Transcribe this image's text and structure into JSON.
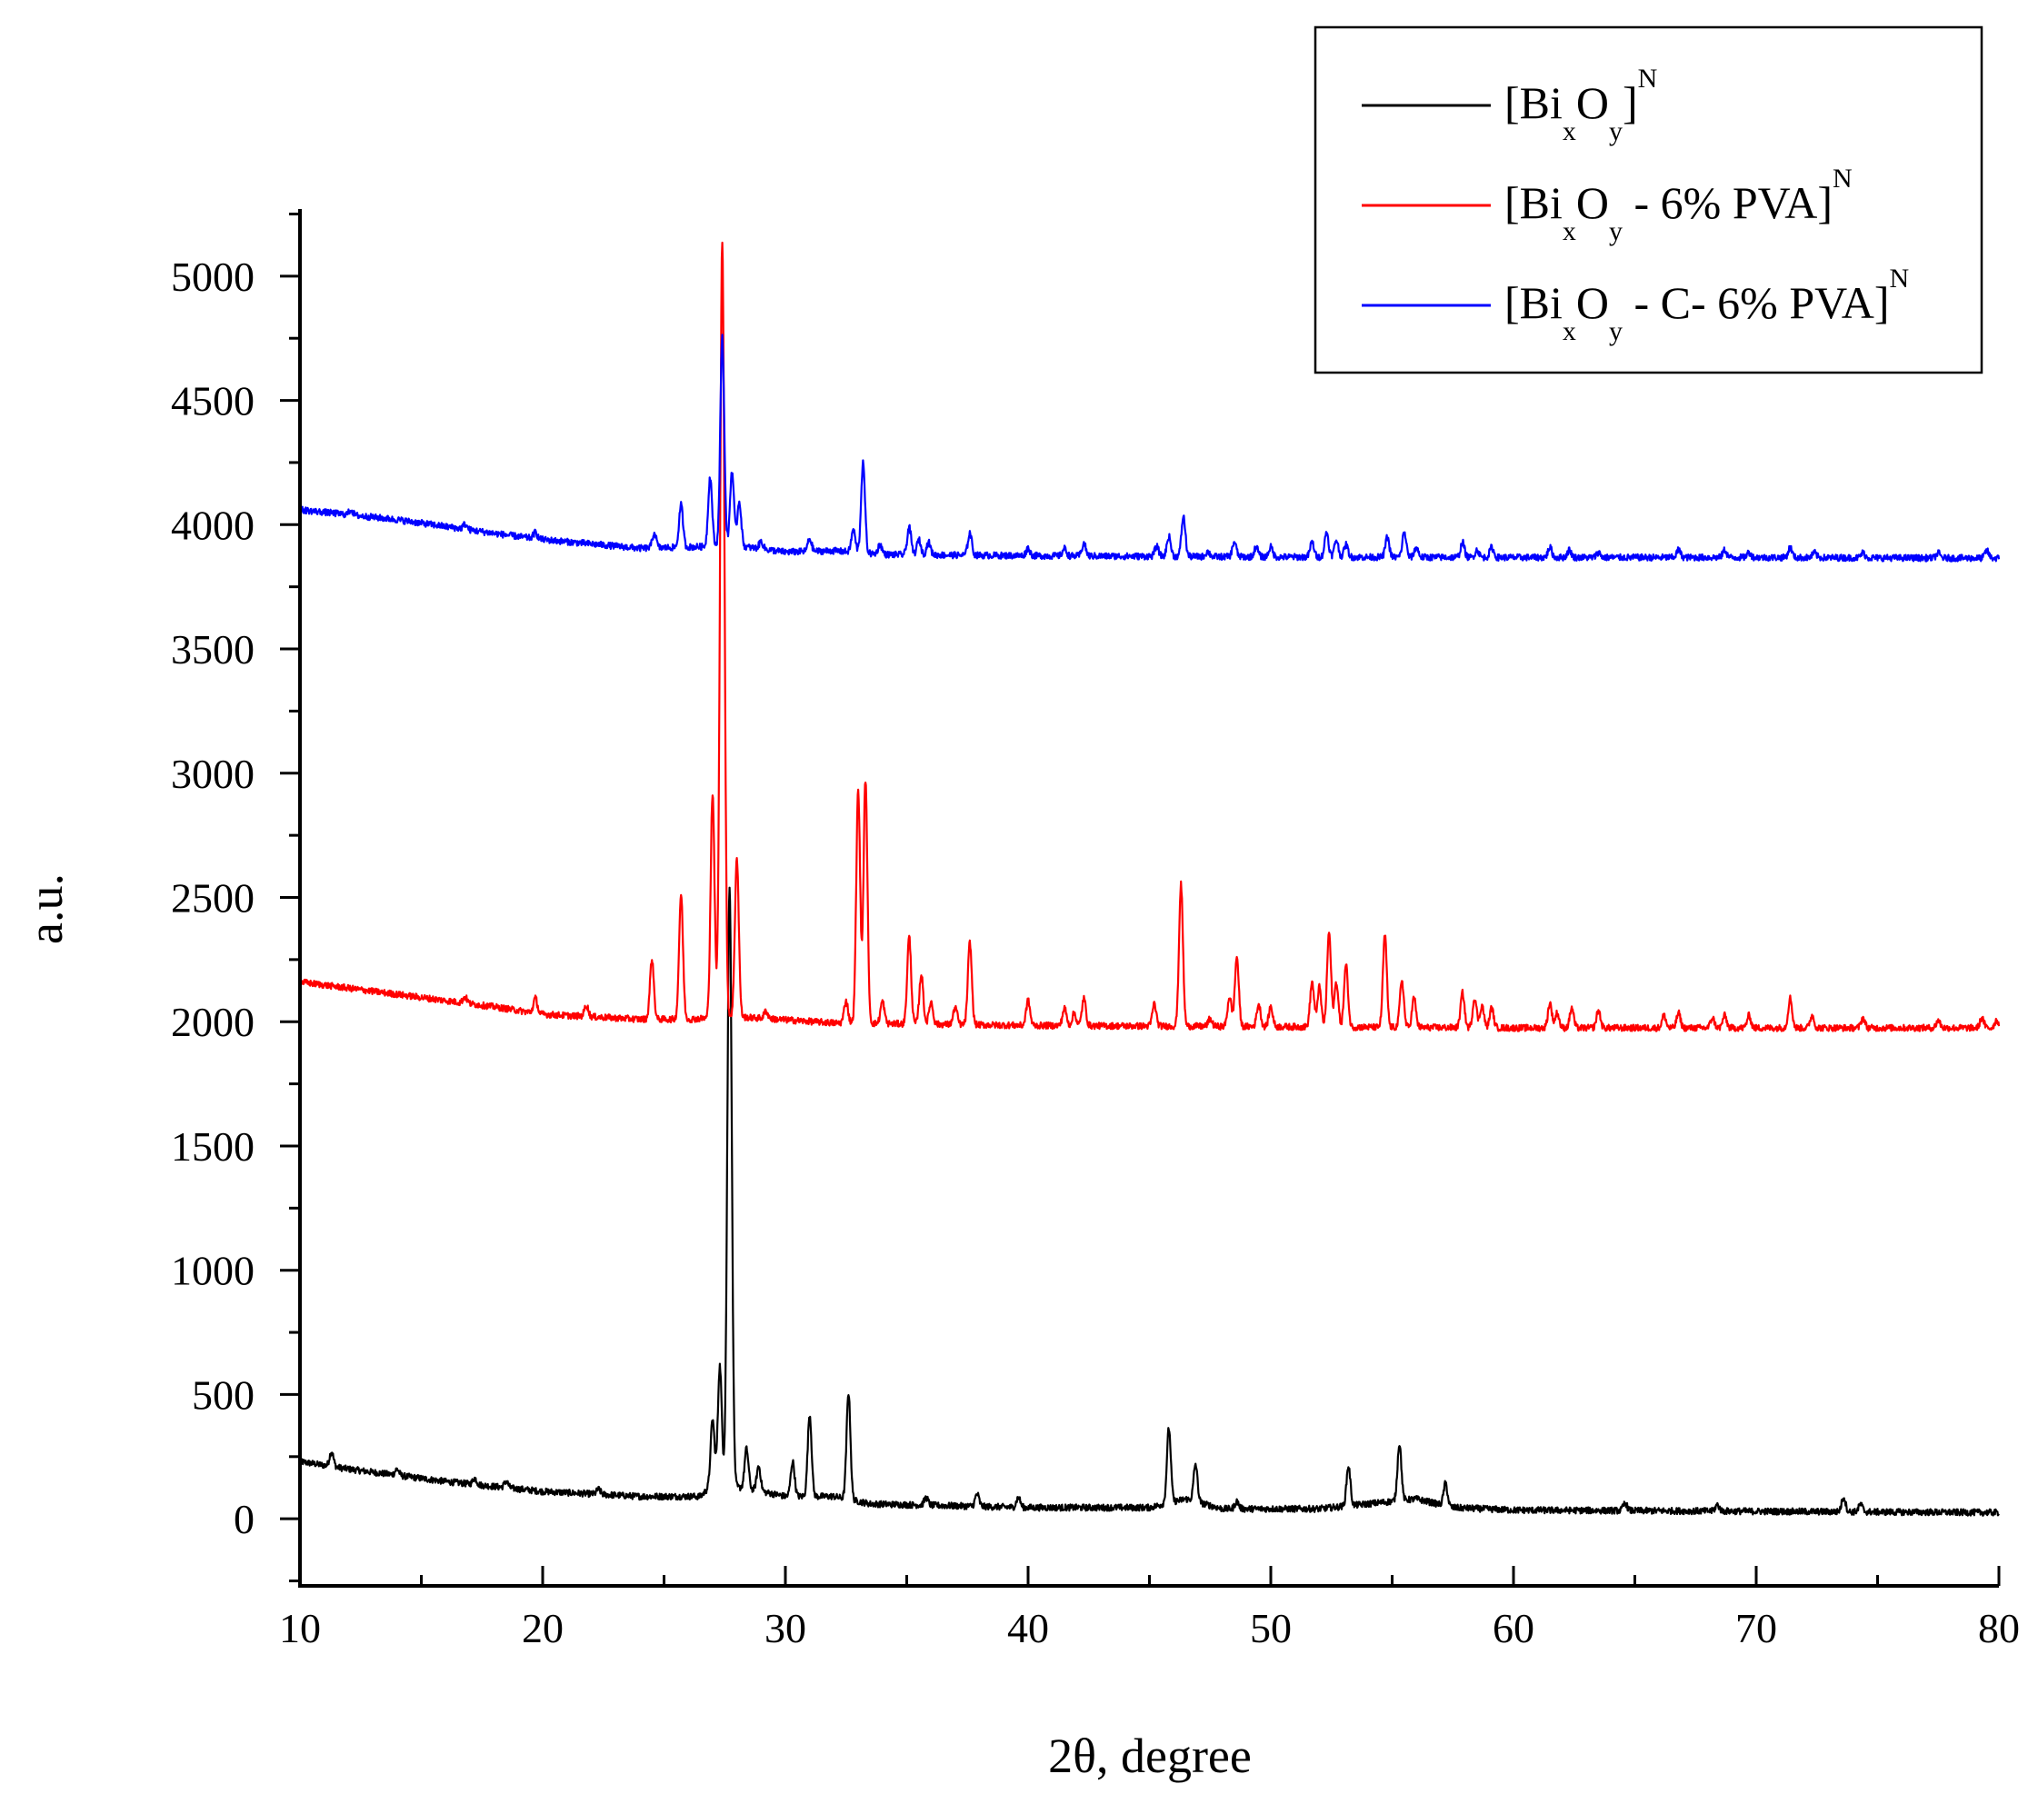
{
  "chart_data": {
    "type": "line",
    "title": "",
    "xlabel": "2θ, degree",
    "ylabel": "a.u.",
    "xlim": [
      10,
      80
    ],
    "ylim": [
      -270,
      5270
    ],
    "xticks": [
      "10",
      "20",
      "30",
      "40",
      "50",
      "60",
      "70",
      "80"
    ],
    "yticks": [
      "0",
      "500",
      "1000",
      "1500",
      "2000",
      "2500",
      "3000",
      "3500",
      "4000",
      "4500",
      "5000"
    ],
    "grid": false,
    "legend_position": "top-right",
    "series": [
      {
        "name": "[BixOy]N",
        "name_parts": {
          "base1": "[Bi",
          "sub1": "x",
          "base2": "O",
          "sub2": "y",
          "base3": "]",
          "sup": "N"
        },
        "color": "#000000",
        "baseline": [
          [
            10,
            230
          ],
          [
            12,
            200
          ],
          [
            16,
            150
          ],
          [
            20,
            110
          ],
          [
            24,
            90
          ],
          [
            26.5,
            90
          ],
          [
            27,
            140
          ],
          [
            28.5,
            120
          ],
          [
            30,
            90
          ],
          [
            32,
            90
          ],
          [
            33.5,
            60
          ],
          [
            40,
            45
          ],
          [
            45,
            45
          ],
          [
            46.5,
            80
          ],
          [
            48,
            40
          ],
          [
            52,
            40
          ],
          [
            56,
            80
          ],
          [
            57.5,
            45
          ],
          [
            60,
            35
          ],
          [
            70,
            30
          ],
          [
            80,
            25
          ]
        ],
        "peaks": [
          [
            11.3,
            60
          ],
          [
            14,
            25
          ],
          [
            17.2,
            25
          ],
          [
            18.5,
            25
          ],
          [
            22.3,
            20
          ],
          [
            27.0,
            260
          ],
          [
            27.3,
            480
          ],
          [
            27.7,
            2420
          ],
          [
            28.4,
            160
          ],
          [
            28.9,
            100
          ],
          [
            30.3,
            140
          ],
          [
            31.0,
            330
          ],
          [
            32.6,
            430
          ],
          [
            35.8,
            30
          ],
          [
            37.9,
            50
          ],
          [
            39.6,
            40
          ],
          [
            45.8,
            300
          ],
          [
            46.9,
            150
          ],
          [
            48.6,
            30
          ],
          [
            53.2,
            160
          ],
          [
            55.3,
            230
          ],
          [
            57.2,
            90
          ],
          [
            64.6,
            30
          ],
          [
            68.4,
            25
          ],
          [
            73.6,
            60
          ],
          [
            74.3,
            30
          ]
        ]
      },
      {
        "name": "[BixOy - 6% PVA]N",
        "name_parts": {
          "base1": "[Bi",
          "sub1": "x",
          "base2": "O",
          "sub2": "y",
          "base3": " - 6% PVA]",
          "sup": "N"
        },
        "color": "#ff0000",
        "baseline": [
          [
            10,
            2160
          ],
          [
            14,
            2110
          ],
          [
            18,
            2060
          ],
          [
            20,
            2030
          ],
          [
            24,
            2010
          ],
          [
            26,
            2010
          ],
          [
            28,
            2020
          ],
          [
            32,
            1995
          ],
          [
            40,
            1985
          ],
          [
            50,
            1980
          ],
          [
            60,
            1975
          ],
          [
            70,
            1975
          ],
          [
            80,
            1975
          ]
        ],
        "peaks": [
          [
            16.8,
            25
          ],
          [
            19.7,
            60
          ],
          [
            21.8,
            45
          ],
          [
            24.5,
            240
          ],
          [
            25.7,
            500
          ],
          [
            27.0,
            900
          ],
          [
            27.4,
            3130
          ],
          [
            28.0,
            640
          ],
          [
            29.2,
            30
          ],
          [
            32.5,
            90
          ],
          [
            33.0,
            940
          ],
          [
            33.3,
            980
          ],
          [
            34.0,
            90
          ],
          [
            35.1,
            350
          ],
          [
            35.6,
            200
          ],
          [
            36.0,
            90
          ],
          [
            37.0,
            70
          ],
          [
            37.6,
            330
          ],
          [
            40.0,
            100
          ],
          [
            41.5,
            70
          ],
          [
            41.9,
            50
          ],
          [
            42.3,
            110
          ],
          [
            45.2,
            90
          ],
          [
            46.3,
            570
          ],
          [
            47.5,
            30
          ],
          [
            48.3,
            120
          ],
          [
            48.6,
            280
          ],
          [
            49.5,
            90
          ],
          [
            50.0,
            80
          ],
          [
            51.7,
            180
          ],
          [
            52.0,
            160
          ],
          [
            52.4,
            380
          ],
          [
            52.7,
            180
          ],
          [
            53.1,
            250
          ],
          [
            54.7,
            370
          ],
          [
            55.4,
            190
          ],
          [
            55.9,
            120
          ],
          [
            57.9,
            140
          ],
          [
            58.4,
            120
          ],
          [
            58.7,
            90
          ],
          [
            59.1,
            80
          ],
          [
            61.5,
            100
          ],
          [
            61.8,
            60
          ],
          [
            62.4,
            80
          ],
          [
            63.5,
            70
          ],
          [
            66.2,
            50
          ],
          [
            66.8,
            60
          ],
          [
            68.2,
            40
          ],
          [
            68.7,
            50
          ],
          [
            69.7,
            50
          ],
          [
            71.4,
            120
          ],
          [
            72.3,
            50
          ],
          [
            74.4,
            40
          ],
          [
            77.5,
            30
          ],
          [
            79.3,
            40
          ],
          [
            79.9,
            30
          ]
        ]
      },
      {
        "name": "[BixOy - C- 6% PVA]N",
        "name_parts": {
          "base1": "[Bi",
          "sub1": "x",
          "base2": "O",
          "sub2": "y",
          "base3": " - C- 6% PVA]",
          "sup": "N"
        },
        "color": "#0000ff",
        "baseline": [
          [
            10,
            4060
          ],
          [
            14,
            4020
          ],
          [
            18,
            3965
          ],
          [
            20,
            3940
          ],
          [
            24,
            3905
          ],
          [
            26,
            3910
          ],
          [
            28,
            3915
          ],
          [
            30,
            3890
          ],
          [
            32,
            3895
          ],
          [
            34,
            3880
          ],
          [
            40,
            3875
          ],
          [
            50,
            3870
          ],
          [
            60,
            3868
          ],
          [
            70,
            3868
          ],
          [
            80,
            3865
          ]
        ],
        "peaks": [
          [
            12.1,
            20
          ],
          [
            16.8,
            20
          ],
          [
            19.7,
            25
          ],
          [
            24.6,
            60
          ],
          [
            25.7,
            170
          ],
          [
            26.9,
            280
          ],
          [
            27.4,
            840
          ],
          [
            27.8,
            300
          ],
          [
            28.1,
            180
          ],
          [
            29.0,
            30
          ],
          [
            31.0,
            50
          ],
          [
            32.8,
            90
          ],
          [
            33.2,
            360
          ],
          [
            33.9,
            40
          ],
          [
            35.1,
            110
          ],
          [
            35.5,
            60
          ],
          [
            35.9,
            50
          ],
          [
            37.6,
            90
          ],
          [
            40.0,
            30
          ],
          [
            41.5,
            30
          ],
          [
            42.3,
            50
          ],
          [
            45.3,
            40
          ],
          [
            45.8,
            80
          ],
          [
            46.4,
            160
          ],
          [
            47.4,
            20
          ],
          [
            48.5,
            60
          ],
          [
            49.4,
            40
          ],
          [
            50.0,
            40
          ],
          [
            51.7,
            60
          ],
          [
            52.3,
            100
          ],
          [
            52.7,
            70
          ],
          [
            53.1,
            50
          ],
          [
            54.8,
            80
          ],
          [
            55.5,
            100
          ],
          [
            56.0,
            40
          ],
          [
            57.9,
            60
          ],
          [
            58.5,
            30
          ],
          [
            59.1,
            40
          ],
          [
            61.5,
            40
          ],
          [
            62.3,
            30
          ],
          [
            63.5,
            20
          ],
          [
            66.8,
            30
          ],
          [
            68.7,
            30
          ],
          [
            69.7,
            20
          ],
          [
            71.4,
            40
          ],
          [
            72.4,
            20
          ],
          [
            74.4,
            20
          ],
          [
            77.5,
            20
          ],
          [
            79.5,
            30
          ]
        ]
      }
    ]
  }
}
